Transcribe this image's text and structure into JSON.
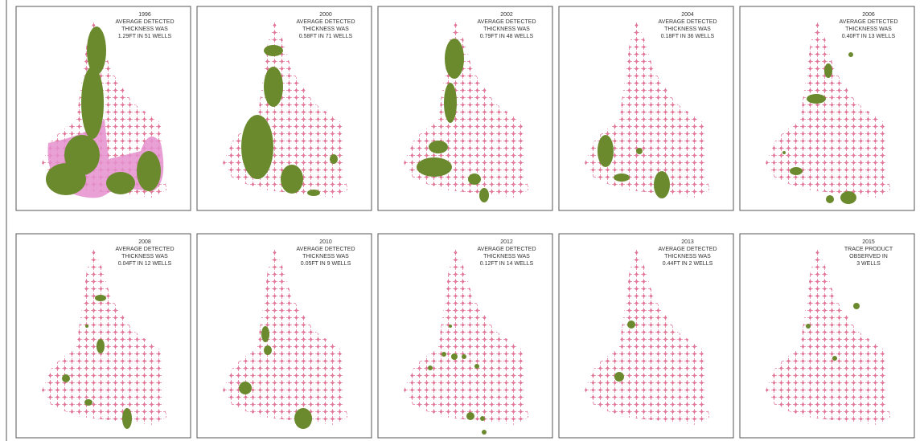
{
  "panels": [
    {
      "year": "1996",
      "lines": [
        "AVERAGE DETECTED",
        "THICKNESS WAS",
        "1.29FT IN 51 WELLS"
      ]
    },
    {
      "year": "2000",
      "lines": [
        "AVERAGE DETECTED",
        "THICKNESS WAS",
        "0.58FT IN 71 WELLS"
      ]
    },
    {
      "year": "2002",
      "lines": [
        "AVERAGE DETECTED",
        "THICKNESS WAS",
        "0.79FT IN 48 WELLS"
      ]
    },
    {
      "year": "2004",
      "lines": [
        "AVERAGE DETECTED",
        "THICKNESS WAS",
        "0.18FT IN 36 WELLS"
      ]
    },
    {
      "year": "2006",
      "lines": [
        "AVERAGE DETECTED",
        "THICKNESS WAS",
        "0.40FT IN 13 WELLS"
      ]
    },
    {
      "year": "2008",
      "lines": [
        "AVERAGE DETECTED",
        "THICKNESS WAS",
        "0.04FT IN 12 WELLS"
      ]
    },
    {
      "year": "2010",
      "lines": [
        "AVERAGE DETECTED",
        "THICKNESS WAS",
        "0.05FT IN 9 WELLS"
      ]
    },
    {
      "year": "2012",
      "lines": [
        "AVERAGE DETECTED",
        "THICKNESS WAS",
        "0.12FT IN 14 WELLS"
      ]
    },
    {
      "year": "2013",
      "lines": [
        "AVERAGE DETECTED",
        "THICKNESS WAS",
        "0.44FT IN 2 WELLS"
      ]
    },
    {
      "year": "2015",
      "lines": [
        "TRACE PRODUCT",
        "OBSERVED IN",
        "3 WELLS"
      ]
    }
  ]
}
